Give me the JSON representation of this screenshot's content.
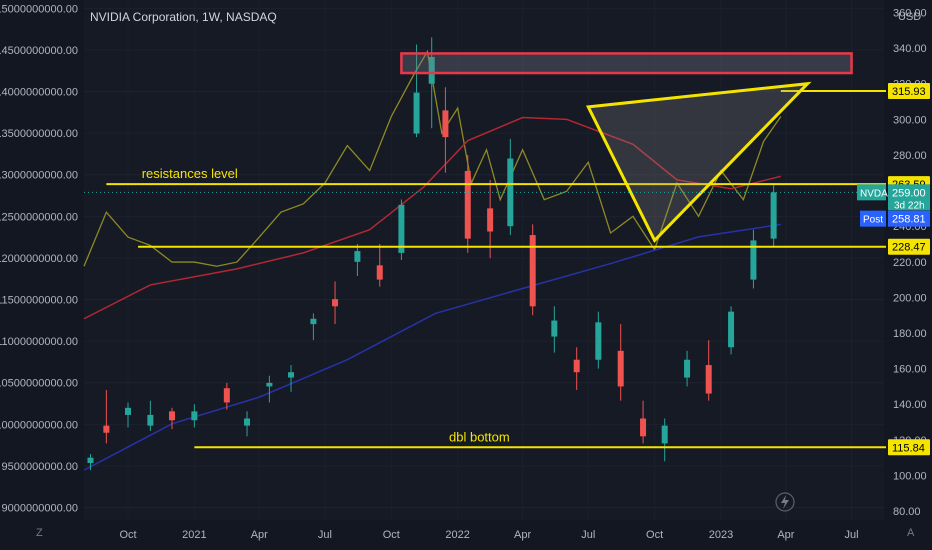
{
  "header": {
    "title": "NVIDIA Corporation, 1W, NASDAQ",
    "currency": "USD"
  },
  "left_axis": {
    "ticks": [
      "15000000000.00",
      "14500000000.00",
      "14000000000.00",
      "13500000000.00",
      "13000000000.00",
      "12500000000.00",
      "12000000000.00",
      "11500000000.00",
      "11000000000.00",
      "10500000000.00",
      "10000000000.00",
      "9500000000.00",
      "9000000000.00"
    ],
    "values": [
      15000000000,
      14500000000,
      14000000000,
      13500000000,
      13000000000,
      12500000000,
      12000000000,
      11500000000,
      11000000000,
      10500000000,
      10000000000,
      9500000000,
      9000000000
    ]
  },
  "right_axis": {
    "ticks": [
      "360.00",
      "340.00",
      "320.00",
      "300.00",
      "280.00",
      "260.00",
      "240.00",
      "220.00",
      "200.00",
      "180.00",
      "160.00",
      "140.00",
      "120.00",
      "100.00",
      "80.00"
    ],
    "values": [
      360,
      340,
      320,
      300,
      280,
      260,
      240,
      220,
      200,
      180,
      160,
      140,
      120,
      100,
      80
    ]
  },
  "x_axis": {
    "ticks": [
      "Oct",
      "2021",
      "Apr",
      "Jul",
      "Oct",
      "2022",
      "Apr",
      "Jul",
      "Oct",
      "2023",
      "Apr",
      "Jul"
    ]
  },
  "price_tags": {
    "res_top": "315.93",
    "res_mid": "263.59",
    "symbol": "NVDA",
    "last": "259.00",
    "countdown": "3d 22h",
    "post_label": "Post",
    "post": "258.81",
    "support_mid": "228.47",
    "support_low": "115.84"
  },
  "annotations": {
    "resistance": "resistances level",
    "bottom": "dbl bottom"
  },
  "corner_labels": {
    "left": "Z",
    "right": "A"
  },
  "colors": {
    "background": "#131722",
    "up": "#26a69a",
    "down": "#ef5350",
    "level": "#f5e400",
    "ma_red": "#b22833",
    "ma_blue": "#2732a8",
    "olive": "#8e8a23"
  },
  "chart_data": {
    "type": "candlestick",
    "title": "NVIDIA Corporation, 1W, NASDAQ",
    "ylim_right": [
      75,
      367
    ],
    "ylim_left": [
      8850000000,
      15100000000
    ],
    "horizontal_levels": [
      315.93,
      263.59,
      228.47,
      115.84
    ],
    "zone": {
      "from_date": "2021-10-15",
      "to_date": "2023-07-01",
      "price_low": 326,
      "price_high": 337
    },
    "triangle": [
      {
        "date": "2022-07-01",
        "price": 307
      },
      {
        "date": "2022-10-01",
        "price": 232
      },
      {
        "date": "2023-05-01",
        "price": 320
      }
    ],
    "series": [
      {
        "name": "NVDA",
        "data": [
          {
            "d": "2020-08-10",
            "o": 107,
            "h": 112,
            "l": 103,
            "c": 110
          },
          {
            "d": "2020-09-01",
            "o": 128,
            "h": 148,
            "l": 118,
            "c": 124
          },
          {
            "d": "2020-10-01",
            "o": 134,
            "h": 141,
            "l": 127,
            "c": 138
          },
          {
            "d": "2020-11-01",
            "o": 128,
            "h": 142,
            "l": 125,
            "c": 134
          },
          {
            "d": "2020-12-01",
            "o": 136,
            "h": 138,
            "l": 126,
            "c": 131
          },
          {
            "d": "2021-01-01",
            "o": 131,
            "h": 140,
            "l": 127,
            "c": 136
          },
          {
            "d": "2021-02-15",
            "o": 149,
            "h": 152,
            "l": 137,
            "c": 141
          },
          {
            "d": "2021-03-15",
            "o": 128,
            "h": 136,
            "l": 122,
            "c": 132
          },
          {
            "d": "2021-04-15",
            "o": 150,
            "h": 156,
            "l": 141,
            "c": 152
          },
          {
            "d": "2021-05-15",
            "o": 155,
            "h": 162,
            "l": 147,
            "c": 158
          },
          {
            "d": "2021-06-15",
            "o": 185,
            "h": 191,
            "l": 176,
            "c": 188
          },
          {
            "d": "2021-07-15",
            "o": 199,
            "h": 209,
            "l": 185,
            "c": 195
          },
          {
            "d": "2021-08-15",
            "o": 220,
            "h": 230,
            "l": 212,
            "c": 226
          },
          {
            "d": "2021-09-15",
            "o": 218,
            "h": 230,
            "l": 206,
            "c": 210
          },
          {
            "d": "2021-10-15",
            "o": 225,
            "h": 255,
            "l": 221,
            "c": 252
          },
          {
            "d": "2021-11-05",
            "o": 292,
            "h": 342,
            "l": 290,
            "c": 315
          },
          {
            "d": "2021-11-26",
            "o": 320,
            "h": 346,
            "l": 295,
            "c": 335
          },
          {
            "d": "2021-12-15",
            "o": 305,
            "h": 318,
            "l": 270,
            "c": 290
          },
          {
            "d": "2022-01-15",
            "o": 271,
            "h": 280,
            "l": 225,
            "c": 233
          },
          {
            "d": "2022-02-15",
            "o": 250,
            "h": 266,
            "l": 222,
            "c": 237
          },
          {
            "d": "2022-03-15",
            "o": 240,
            "h": 289,
            "l": 235,
            "c": 278
          },
          {
            "d": "2022-04-15",
            "o": 235,
            "h": 241,
            "l": 190,
            "c": 195
          },
          {
            "d": "2022-05-15",
            "o": 178,
            "h": 195,
            "l": 169,
            "c": 187
          },
          {
            "d": "2022-06-15",
            "o": 165,
            "h": 172,
            "l": 148,
            "c": 158
          },
          {
            "d": "2022-07-15",
            "o": 165,
            "h": 192,
            "l": 160,
            "c": 186
          },
          {
            "d": "2022-08-15",
            "o": 170,
            "h": 185,
            "l": 142,
            "c": 150
          },
          {
            "d": "2022-09-15",
            "o": 132,
            "h": 142,
            "l": 118,
            "c": 122
          },
          {
            "d": "2022-10-15",
            "o": 118,
            "h": 132,
            "l": 108,
            "c": 128
          },
          {
            "d": "2022-11-15",
            "o": 155,
            "h": 170,
            "l": 150,
            "c": 165
          },
          {
            "d": "2022-12-15",
            "o": 162,
            "h": 176,
            "l": 142,
            "c": 146
          },
          {
            "d": "2023-01-15",
            "o": 172,
            "h": 195,
            "l": 168,
            "c": 192
          },
          {
            "d": "2023-02-15",
            "o": 210,
            "h": 238,
            "l": 205,
            "c": 232
          },
          {
            "d": "2023-03-15",
            "o": 233,
            "h": 264,
            "l": 228,
            "c": 259
          }
        ]
      },
      {
        "name": "Moving average (red)",
        "x": [
          "2020-08-01",
          "2020-11-01",
          "2021-03-01",
          "2021-06-01",
          "2021-09-01",
          "2021-11-15",
          "2022-01-15",
          "2022-04-01",
          "2022-06-01",
          "2022-09-01",
          "2022-11-01",
          "2023-01-15",
          "2023-03-25"
        ],
        "y": [
          188,
          207,
          216,
          225,
          238,
          262,
          288,
          301,
          300,
          286,
          266,
          261,
          268
        ]
      },
      {
        "name": "Moving average (blue)",
        "x": [
          "2020-08-01",
          "2020-12-01",
          "2021-04-01",
          "2021-08-01",
          "2021-12-01",
          "2022-04-01",
          "2022-08-01",
          "2022-12-01",
          "2023-03-25"
        ],
        "y": [
          103,
          129,
          144,
          165,
          191,
          205,
          219,
          234,
          241
        ]
      },
      {
        "name": "Left-axis series (olive)",
        "x": [
          "2020-08-01",
          "2020-09-01",
          "2020-10-01",
          "2020-11-01",
          "2020-12-01",
          "2021-01-01",
          "2021-02-01",
          "2021-03-01",
          "2021-04-01",
          "2021-05-01",
          "2021-06-01",
          "2021-07-01",
          "2021-08-01",
          "2021-09-01",
          "2021-10-01",
          "2021-11-01",
          "2021-11-20",
          "2021-12-10",
          "2022-01-01",
          "2022-01-20",
          "2022-02-10",
          "2022-03-01",
          "2022-04-01",
          "2022-05-01",
          "2022-06-01",
          "2022-07-01",
          "2022-08-01",
          "2022-09-01",
          "2022-10-01",
          "2022-11-01",
          "2022-12-01",
          "2023-01-01",
          "2023-02-01",
          "2023-03-01",
          "2023-03-25"
        ],
        "y": [
          11900000000,
          12550000000,
          12250000000,
          12150000000,
          11950000000,
          11950000000,
          11900000000,
          11950000000,
          12250000000,
          12550000000,
          12650000000,
          12900000000,
          13350000000,
          13050000000,
          13700000000,
          14200000000,
          14480000000,
          13500000000,
          13800000000,
          12900000000,
          13300000000,
          12700000000,
          13300000000,
          12700000000,
          12800000000,
          13150000000,
          12300000000,
          12500000000,
          12100000000,
          12900000000,
          12500000000,
          13050000000,
          12700000000,
          13400000000,
          13700000000
        ]
      }
    ]
  }
}
